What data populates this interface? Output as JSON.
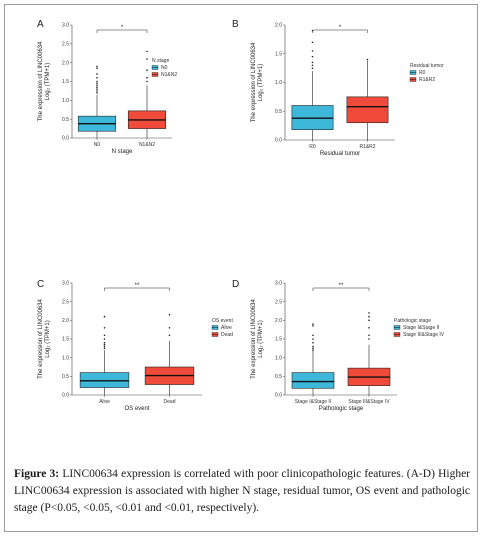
{
  "caption": {
    "label": "Figure 3:",
    "text": "LINC00634 expression is correlated with poor clinicopathologic features. (A-D) Higher LINC00634 expression is associated with higher N stage, residual tumor, OS event and pathologic stage (P<0.05, <0.05, <0.01 and <0.01, respectively)."
  },
  "chart_data": [
    {
      "panel": "A",
      "type": "boxplot",
      "ylabel_line1": "The expression of LINC00634",
      "ylabel_line2": "Log₂ (TPM+1)",
      "xlabel": "N stage",
      "ylim": [
        0,
        3.0
      ],
      "yticks": [
        0.0,
        0.5,
        1.0,
        1.5,
        2.0,
        2.5,
        3.0
      ],
      "ytick_labels": [
        "0.0",
        "0.5",
        "1.0",
        "1.5",
        "2.0",
        "2.5",
        "3.0"
      ],
      "legend_title": "N stage",
      "significance": "*",
      "groups": [
        {
          "name": "N0",
          "color": "#3DB8DA",
          "whisker_low": 0.0,
          "q1": 0.18,
          "median": 0.38,
          "q3": 0.58,
          "whisker_high": 1.15,
          "outliers": [
            1.2,
            1.25,
            1.3,
            1.35,
            1.4,
            1.45,
            1.5,
            1.6,
            1.7,
            1.85,
            1.9
          ]
        },
        {
          "name": "N1&N2",
          "color": "#F04A3A",
          "whisker_low": 0.0,
          "q1": 0.25,
          "median": 0.48,
          "q3": 0.72,
          "whisker_high": 1.4,
          "outliers": [
            1.5,
            1.6,
            1.8,
            2.1,
            2.3
          ]
        }
      ]
    },
    {
      "panel": "B",
      "type": "boxplot",
      "ylabel_line1": "The expression of LINC00634",
      "ylabel_line2": "Log₂ (TPM+1)",
      "xlabel": "Residual tumor",
      "ylim": [
        0,
        2.0
      ],
      "yticks": [
        0.0,
        0.5,
        1.0,
        1.5,
        2.0
      ],
      "ytick_labels": [
        "0.0",
        "0.5",
        "1.0",
        "1.5",
        "2.0"
      ],
      "legend_title": "Residual tumor",
      "significance": "*",
      "groups": [
        {
          "name": "R0",
          "color": "#3DB8DA",
          "whisker_low": 0.0,
          "q1": 0.18,
          "median": 0.38,
          "q3": 0.6,
          "whisker_high": 1.2,
          "outliers": [
            1.25,
            1.3,
            1.35,
            1.45,
            1.55,
            1.7,
            1.9
          ]
        },
        {
          "name": "R1&R2",
          "color": "#F04A3A",
          "whisker_low": 0.0,
          "q1": 0.3,
          "median": 0.58,
          "q3": 0.75,
          "whisker_high": 1.38,
          "outliers": [
            1.4
          ]
        }
      ]
    },
    {
      "panel": "C",
      "type": "boxplot",
      "ylabel_line1": "The expression of LINC00634",
      "ylabel_line2": "Log₂ (TPM+1)",
      "xlabel": "OS event",
      "ylim": [
        0,
        3.0
      ],
      "yticks": [
        0.0,
        0.5,
        1.0,
        1.5,
        2.0,
        2.5,
        3.0
      ],
      "ytick_labels": [
        "0.0",
        "0.5",
        "1.0",
        "1.5",
        "2.0",
        "2.5",
        "3.0"
      ],
      "legend_title": "OS event",
      "significance": "**",
      "groups": [
        {
          "name": "Alive",
          "color": "#3DB8DA",
          "whisker_low": 0.0,
          "q1": 0.2,
          "median": 0.38,
          "q3": 0.6,
          "whisker_high": 1.2,
          "outliers": [
            1.25,
            1.3,
            1.35,
            1.4,
            1.5,
            1.6,
            1.8,
            2.1
          ]
        },
        {
          "name": "Dead",
          "color": "#F04A3A",
          "whisker_low": 0.0,
          "q1": 0.28,
          "median": 0.52,
          "q3": 0.75,
          "whisker_high": 1.45,
          "outliers": [
            1.6,
            1.8,
            2.15
          ]
        }
      ]
    },
    {
      "panel": "D",
      "type": "boxplot",
      "ylabel_line1": "The expression of LINC00634",
      "ylabel_line2": "Log₂ (TPM+1)",
      "xlabel": "Pathologic stage",
      "ylim": [
        0,
        3.0
      ],
      "yticks": [
        0.0,
        0.5,
        1.0,
        1.5,
        2.0,
        2.5,
        3.0
      ],
      "ytick_labels": [
        "0.0",
        "0.5",
        "1.0",
        "1.5",
        "2.0",
        "2.5",
        "3.0"
      ],
      "legend_title": "Pathologic stage",
      "significance": "**",
      "groups": [
        {
          "name": "Stage I&Stage II",
          "color": "#3DB8DA",
          "whisker_low": 0.0,
          "q1": 0.18,
          "median": 0.36,
          "q3": 0.6,
          "whisker_high": 1.18,
          "outliers": [
            1.2,
            1.25,
            1.3,
            1.4,
            1.5,
            1.6,
            1.85,
            1.9
          ]
        },
        {
          "name": "Stage III&Stage IV",
          "color": "#F04A3A",
          "whisker_low": 0.0,
          "q1": 0.25,
          "median": 0.48,
          "q3": 0.72,
          "whisker_high": 1.35,
          "outliers": [
            1.5,
            1.6,
            1.8,
            2.0,
            2.1,
            2.2
          ]
        }
      ]
    }
  ]
}
